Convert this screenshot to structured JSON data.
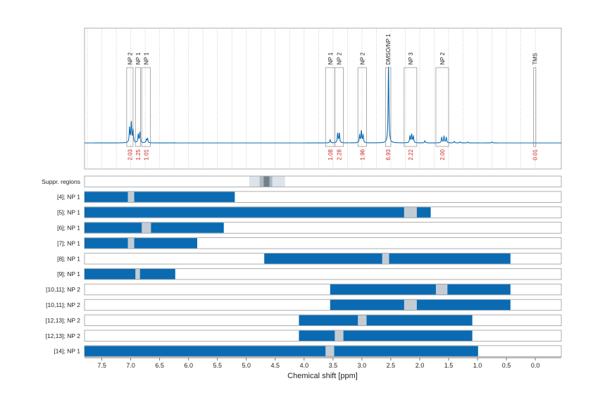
{
  "chart_data": {
    "type": "line",
    "xlabel": "Chemical shift [ppm]",
    "xlim": [
      7.8,
      -0.45
    ],
    "x_ticks": [
      "7.5",
      "7.0",
      "6.5",
      "6.0",
      "5.5",
      "5.0",
      "4.5",
      "4.0",
      "3.5",
      "3.0",
      "2.5",
      "2.0",
      "1.5",
      "1.0",
      "0.5",
      "0.0"
    ],
    "x_tick_values": [
      7.5,
      7.0,
      6.5,
      6.0,
      5.5,
      5.0,
      4.5,
      4.0,
      3.5,
      3.0,
      2.5,
      2.0,
      1.5,
      1.0,
      0.5,
      0.0
    ],
    "grid": "vertical dotted",
    "spectrum_color": "#0a6bb3",
    "bar_color": "#0a6bb3",
    "gap_color": "#c4ccd3",
    "integral_color": "#d42020",
    "peaks": [
      {
        "ppm": 7.02,
        "height": 0.14
      },
      {
        "ppm": 6.99,
        "height": 0.19
      },
      {
        "ppm": 6.96,
        "height": 0.12
      },
      {
        "ppm": 6.87,
        "height": 0.08
      },
      {
        "ppm": 6.84,
        "height": 0.1
      },
      {
        "ppm": 6.73,
        "height": 0.03
      },
      {
        "ppm": 6.71,
        "height": 0.04
      },
      {
        "ppm": 3.55,
        "height": 0.03
      },
      {
        "ppm": 3.42,
        "height": 0.09
      },
      {
        "ppm": 3.39,
        "height": 0.09
      },
      {
        "ppm": 3.04,
        "height": 0.07
      },
      {
        "ppm": 3.01,
        "height": 0.11
      },
      {
        "ppm": 2.98,
        "height": 0.07
      },
      {
        "ppm": 2.54,
        "height": 0.72
      },
      {
        "ppm": 2.17,
        "height": 0.06
      },
      {
        "ppm": 2.14,
        "height": 0.08
      },
      {
        "ppm": 2.11,
        "height": 0.06
      },
      {
        "ppm": 1.91,
        "height": 0.02
      },
      {
        "ppm": 1.62,
        "height": 0.05
      },
      {
        "ppm": 1.58,
        "height": 0.06
      },
      {
        "ppm": 1.54,
        "height": 0.05
      },
      {
        "ppm": 1.4,
        "height": 0.015
      },
      {
        "ppm": 1.3,
        "height": 0.01
      },
      {
        "ppm": 1.17,
        "height": 0.008
      },
      {
        "ppm": 0.75,
        "height": 0.01
      }
    ],
    "regions": [
      {
        "label": "NP 2",
        "from": 7.07,
        "to": 6.96,
        "integral": "2.03"
      },
      {
        "label": "NP 1",
        "from": 6.92,
        "to": 6.83,
        "integral": "1.25"
      },
      {
        "label": "NP 1",
        "from": 6.81,
        "to": 6.66,
        "integral": "1.01"
      },
      {
        "label": "NP 1",
        "from": 3.63,
        "to": 3.47,
        "integral": "1.08"
      },
      {
        "label": "NP 2",
        "from": 3.47,
        "to": 3.32,
        "integral": "2.28"
      },
      {
        "label": "NP 2",
        "from": 3.07,
        "to": 2.92,
        "integral": "1.96"
      },
      {
        "label": "DMSO/NP 1",
        "from": 2.59,
        "to": 2.5,
        "integral": "6.93"
      },
      {
        "label": "NP 3",
        "from": 2.27,
        "to": 2.05,
        "integral": "2.22"
      },
      {
        "label": "NP 2",
        "from": 1.72,
        "to": 1.5,
        "integral": "2.00"
      },
      {
        "label": "TMS",
        "from": 0.03,
        "to": -0.01,
        "integral": "0.01"
      }
    ],
    "suppression": {
      "label": "Suppr. regions",
      "outer": [
        4.95,
        4.33
      ],
      "inner": [
        4.77,
        4.55
      ],
      "core": [
        4.7,
        4.6
      ],
      "outer_color": "#dce3ea",
      "inner_color": "#aeb9c4",
      "core_color": "#73808c"
    },
    "rows": [
      {
        "label": "[4]; NP 1",
        "bar": [
          7.8,
          5.2
        ],
        "gap": [
          7.05,
          6.94
        ]
      },
      {
        "label": "[5]; NP 1",
        "bar": [
          7.8,
          1.81
        ],
        "gap": [
          2.27,
          2.05
        ]
      },
      {
        "label": "[6]; NP 1",
        "bar": [
          7.8,
          5.39
        ],
        "gap": [
          6.81,
          6.65
        ]
      },
      {
        "label": "[7]; NP 1",
        "bar": [
          7.8,
          5.85
        ],
        "gap": [
          7.05,
          6.94
        ]
      },
      {
        "label": "[8]; NP 1",
        "bar": [
          4.69,
          0.43
        ],
        "gap": [
          2.65,
          2.53
        ]
      },
      {
        "label": "[9]; NP 1",
        "bar": [
          7.8,
          6.23
        ],
        "gap": [
          6.92,
          6.84
        ]
      },
      {
        "label": "[10,11]; NP 2",
        "bar": [
          3.55,
          0.43
        ],
        "gap": [
          1.72,
          1.52
        ]
      },
      {
        "label": "[10,11]; NP 2",
        "bar": [
          3.55,
          0.43
        ],
        "gap": [
          2.27,
          2.05
        ]
      },
      {
        "label": "[12,13]; NP 2",
        "bar": [
          4.09,
          1.09
        ],
        "gap": [
          3.07,
          2.92
        ]
      },
      {
        "label": "[12,13]; NP 2",
        "bar": [
          4.09,
          1.09
        ],
        "gap": [
          3.47,
          3.32
        ]
      },
      {
        "label": "[14]; NP 1",
        "bar": [
          7.8,
          0.99
        ],
        "gap": [
          3.63,
          3.48
        ]
      }
    ]
  }
}
